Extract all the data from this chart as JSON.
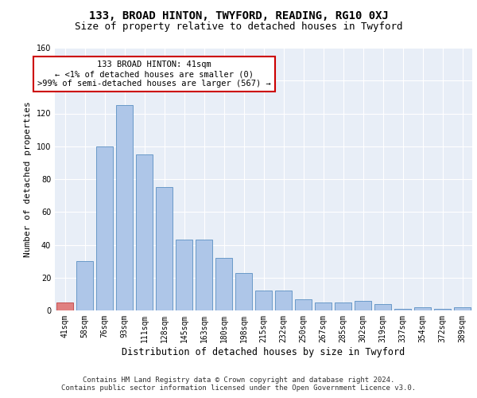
{
  "title": "133, BROAD HINTON, TWYFORD, READING, RG10 0XJ",
  "subtitle": "Size of property relative to detached houses in Twyford",
  "xlabel": "Distribution of detached houses by size in Twyford",
  "ylabel": "Number of detached properties",
  "categories": [
    "41sqm",
    "58sqm",
    "76sqm",
    "93sqm",
    "111sqm",
    "128sqm",
    "145sqm",
    "163sqm",
    "180sqm",
    "198sqm",
    "215sqm",
    "232sqm",
    "250sqm",
    "267sqm",
    "285sqm",
    "302sqm",
    "319sqm",
    "337sqm",
    "354sqm",
    "372sqm",
    "389sqm"
  ],
  "values": [
    5,
    30,
    100,
    125,
    95,
    75,
    43,
    43,
    32,
    23,
    12,
    12,
    7,
    5,
    5,
    6,
    4,
    1,
    2,
    1,
    2
  ],
  "bar_color": "#aec6e8",
  "bar_edge_color": "#5a8fc2",
  "highlight_index": 0,
  "highlight_color": "#e08080",
  "highlight_edge_color": "#c04040",
  "annotation_text": "133 BROAD HINTON: 41sqm\n← <1% of detached houses are smaller (0)\n>99% of semi-detached houses are larger (567) →",
  "annotation_box_color": "#ffffff",
  "annotation_box_edge_color": "#cc0000",
  "ylim": [
    0,
    160
  ],
  "yticks": [
    0,
    20,
    40,
    60,
    80,
    100,
    120,
    140,
    160
  ],
  "background_color": "#e8eef7",
  "footer_line1": "Contains HM Land Registry data © Crown copyright and database right 2024.",
  "footer_line2": "Contains public sector information licensed under the Open Government Licence v3.0.",
  "title_fontsize": 10,
  "subtitle_fontsize": 9,
  "ylabel_fontsize": 8,
  "xlabel_fontsize": 8.5,
  "tick_fontsize": 7,
  "annotation_fontsize": 7.5,
  "footer_fontsize": 6.5
}
